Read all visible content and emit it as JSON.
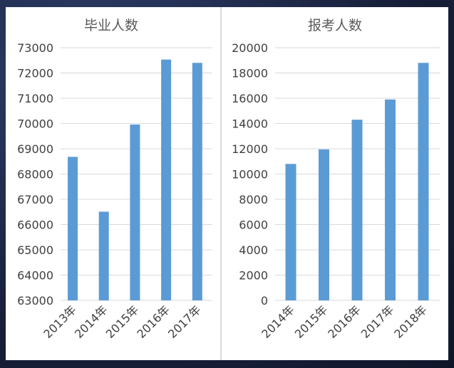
{
  "chart_data": [
    {
      "type": "bar",
      "title": "毕业人数",
      "categories": [
        "2013年",
        "2014年",
        "2015年",
        "2016年",
        "2017年"
      ],
      "values": [
        68680,
        66510,
        69960,
        72530,
        72400
      ],
      "ylim": [
        63000,
        73000
      ],
      "yticks": [
        "63000",
        "64000",
        "65000",
        "66000",
        "67000",
        "68000",
        "69000",
        "70000",
        "71000",
        "72000",
        "73000"
      ],
      "xlabel": "",
      "ylabel": "",
      "grid": true,
      "bar_color": "#5b9bd5"
    },
    {
      "type": "bar",
      "title": "报考人数",
      "categories": [
        "2014年",
        "2015年",
        "2016年",
        "2017年",
        "2018年"
      ],
      "values": [
        10800,
        11950,
        14300,
        15900,
        18800
      ],
      "ylim": [
        0,
        20000
      ],
      "yticks": [
        "0",
        "2000",
        "4000",
        "6000",
        "8000",
        "10000",
        "12000",
        "14000",
        "16000",
        "18000",
        "20000"
      ],
      "xlabel": "",
      "ylabel": "",
      "grid": true,
      "bar_color": "#5b9bd5"
    }
  ]
}
